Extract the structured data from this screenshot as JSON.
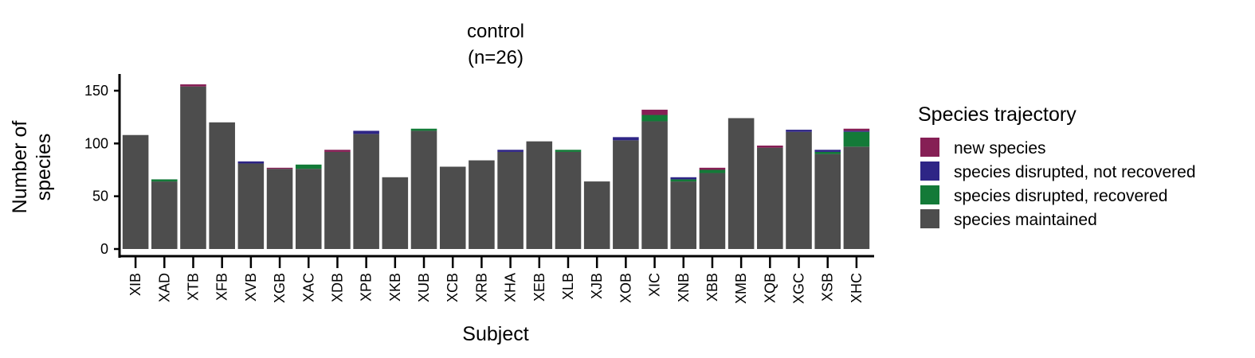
{
  "chart_data": {
    "type": "bar",
    "stacked": true,
    "title": "control",
    "subtitle": "(n=26)",
    "xlabel": "Subject",
    "ylabel_lines": [
      "Number of",
      "species"
    ],
    "ylim": [
      0,
      165
    ],
    "yticks": [
      0,
      50,
      100,
      150
    ],
    "grid": false,
    "legend": {
      "title": "Species trajectory",
      "placement": "right"
    },
    "categories": [
      "XIB",
      "XAD",
      "XTB",
      "XFB",
      "XVB",
      "XGB",
      "XAC",
      "XDB",
      "XPB",
      "XKB",
      "XUB",
      "XCB",
      "XRB",
      "XHA",
      "XEB",
      "XLB",
      "XJB",
      "XOB",
      "XIC",
      "XNB",
      "XBB",
      "XMB",
      "XQB",
      "XGC",
      "XSB",
      "XHC"
    ],
    "series": [
      {
        "name": "species maintained",
        "color": "#4d4d4d",
        "values": [
          108,
          64,
          154,
          120,
          81,
          76,
          76,
          92,
          109,
          68,
          112,
          78,
          84,
          92,
          102,
          92,
          64,
          103,
          121,
          64,
          72,
          124,
          96,
          111,
          90,
          97
        ]
      },
      {
        "name": "species disrupted, recovered",
        "color": "#137a38",
        "values": [
          0,
          2,
          0,
          0,
          0,
          0,
          4,
          0,
          0,
          0,
          2,
          0,
          0,
          0,
          0,
          2,
          0,
          0,
          6,
          2,
          3,
          0,
          0,
          0,
          2,
          14
        ]
      },
      {
        "name": "species disrupted, not recovered",
        "color": "#2e2586",
        "values": [
          0,
          0,
          0,
          0,
          2,
          0,
          0,
          0,
          3,
          0,
          0,
          0,
          0,
          2,
          0,
          0,
          0,
          3,
          0,
          2,
          0,
          0,
          0,
          2,
          2,
          1
        ]
      },
      {
        "name": "new species",
        "color": "#861f55",
        "values": [
          0,
          0,
          2,
          0,
          0,
          1,
          0,
          2,
          0,
          0,
          0,
          0,
          0,
          0,
          0,
          0,
          0,
          0,
          5,
          0,
          2,
          0,
          2,
          0,
          0,
          2
        ]
      }
    ],
    "legend_order": [
      "new species",
      "species disrupted, not recovered",
      "species disrupted, recovered",
      "species maintained"
    ]
  }
}
